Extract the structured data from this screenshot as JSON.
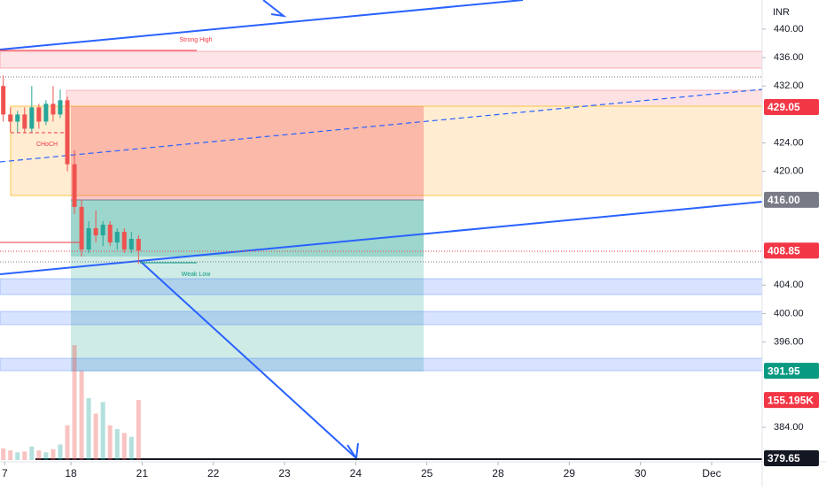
{
  "chart_data": {
    "type": "candlestick",
    "currency": "INR",
    "annotations": [
      "Strong High",
      "CHoCH",
      "Weak Low"
    ],
    "up_color": "#26a69a",
    "down_color": "#ef5350",
    "x": [
      -0.95,
      -0.85,
      -0.75,
      -0.65,
      -0.55,
      -0.45,
      -0.35,
      -0.25,
      -0.15,
      -0.05,
      0.05,
      0.15,
      0.25,
      0.35,
      0.45,
      0.55,
      0.65,
      0.75,
      0.85,
      0.95
    ],
    "open": [
      432,
      428,
      427,
      428,
      426,
      429,
      427,
      429.5,
      428,
      430,
      421,
      415,
      409,
      412,
      411,
      412.5,
      410,
      411.5,
      409,
      410.5
    ],
    "high": [
      433.5,
      429,
      428.5,
      429,
      432,
      429.5,
      430,
      432,
      431.5,
      430.5,
      423,
      416,
      413,
      414.5,
      413,
      413,
      412,
      412,
      411.5,
      411
    ],
    "low": [
      427,
      425.5,
      425.5,
      425.5,
      425.5,
      426,
      426.5,
      427,
      427.5,
      420,
      414,
      408,
      408.5,
      410,
      409.5,
      409.5,
      409,
      408.5,
      408.5,
      407
    ],
    "close": [
      428,
      427,
      428,
      426,
      429,
      427,
      429.5,
      428,
      430,
      421,
      415,
      409,
      412,
      411,
      412.5,
      410,
      411.5,
      409,
      410.5,
      408.85
    ],
    "volume": [
      30000,
      25000,
      20000,
      22000,
      35000,
      25000,
      20000,
      28000,
      40000,
      90000,
      297000,
      230000,
      160000,
      120000,
      150000,
      90000,
      80000,
      70000,
      60000,
      155195
    ],
    "vlim": [
      0,
      1190000
    ],
    "xlim": [
      -0.996,
      9.71
    ],
    "xticks": [
      {
        "value": -0.93,
        "label": "7"
      },
      {
        "value": 0,
        "label": "18"
      },
      {
        "value": 1,
        "label": "21"
      },
      {
        "value": 2,
        "label": "22"
      },
      {
        "value": 3,
        "label": "23"
      },
      {
        "value": 4,
        "label": "24"
      },
      {
        "value": 5,
        "label": "25"
      },
      {
        "value": 6,
        "label": "28"
      },
      {
        "value": 7,
        "label": "29"
      },
      {
        "value": 8,
        "label": "30"
      },
      {
        "value": 9,
        "label": "Dec"
      }
    ],
    "ylim": [
      379.4,
      444.1
    ],
    "yticks": [
      {
        "value": 440,
        "label": "440.00"
      },
      {
        "value": 436,
        "label": "436.00"
      },
      {
        "value": 432,
        "label": "432.00"
      },
      {
        "value": 424,
        "label": "424.00"
      },
      {
        "value": 420,
        "label": "420.00"
      },
      {
        "value": 404,
        "label": "404.00"
      },
      {
        "value": 400,
        "label": "400.00"
      },
      {
        "value": 396,
        "label": "396.00"
      },
      {
        "value": 384,
        "label": "384.00"
      }
    ],
    "price_labels": [
      {
        "value": 429.05,
        "label": "429.05",
        "color": "#f23645"
      },
      {
        "value": 416,
        "label": "416.00",
        "color": "#787b86"
      },
      {
        "value": 408.85,
        "label": "408.85",
        "color": "#f23645"
      },
      {
        "value": 391.95,
        "label": "391.95",
        "color": "#089981"
      },
      {
        "value": 379.65,
        "label": "379.65",
        "color": "#131722"
      }
    ],
    "volume_label": {
      "value": 155195,
      "label": "155.195K",
      "color": "#f23645"
    }
  }
}
